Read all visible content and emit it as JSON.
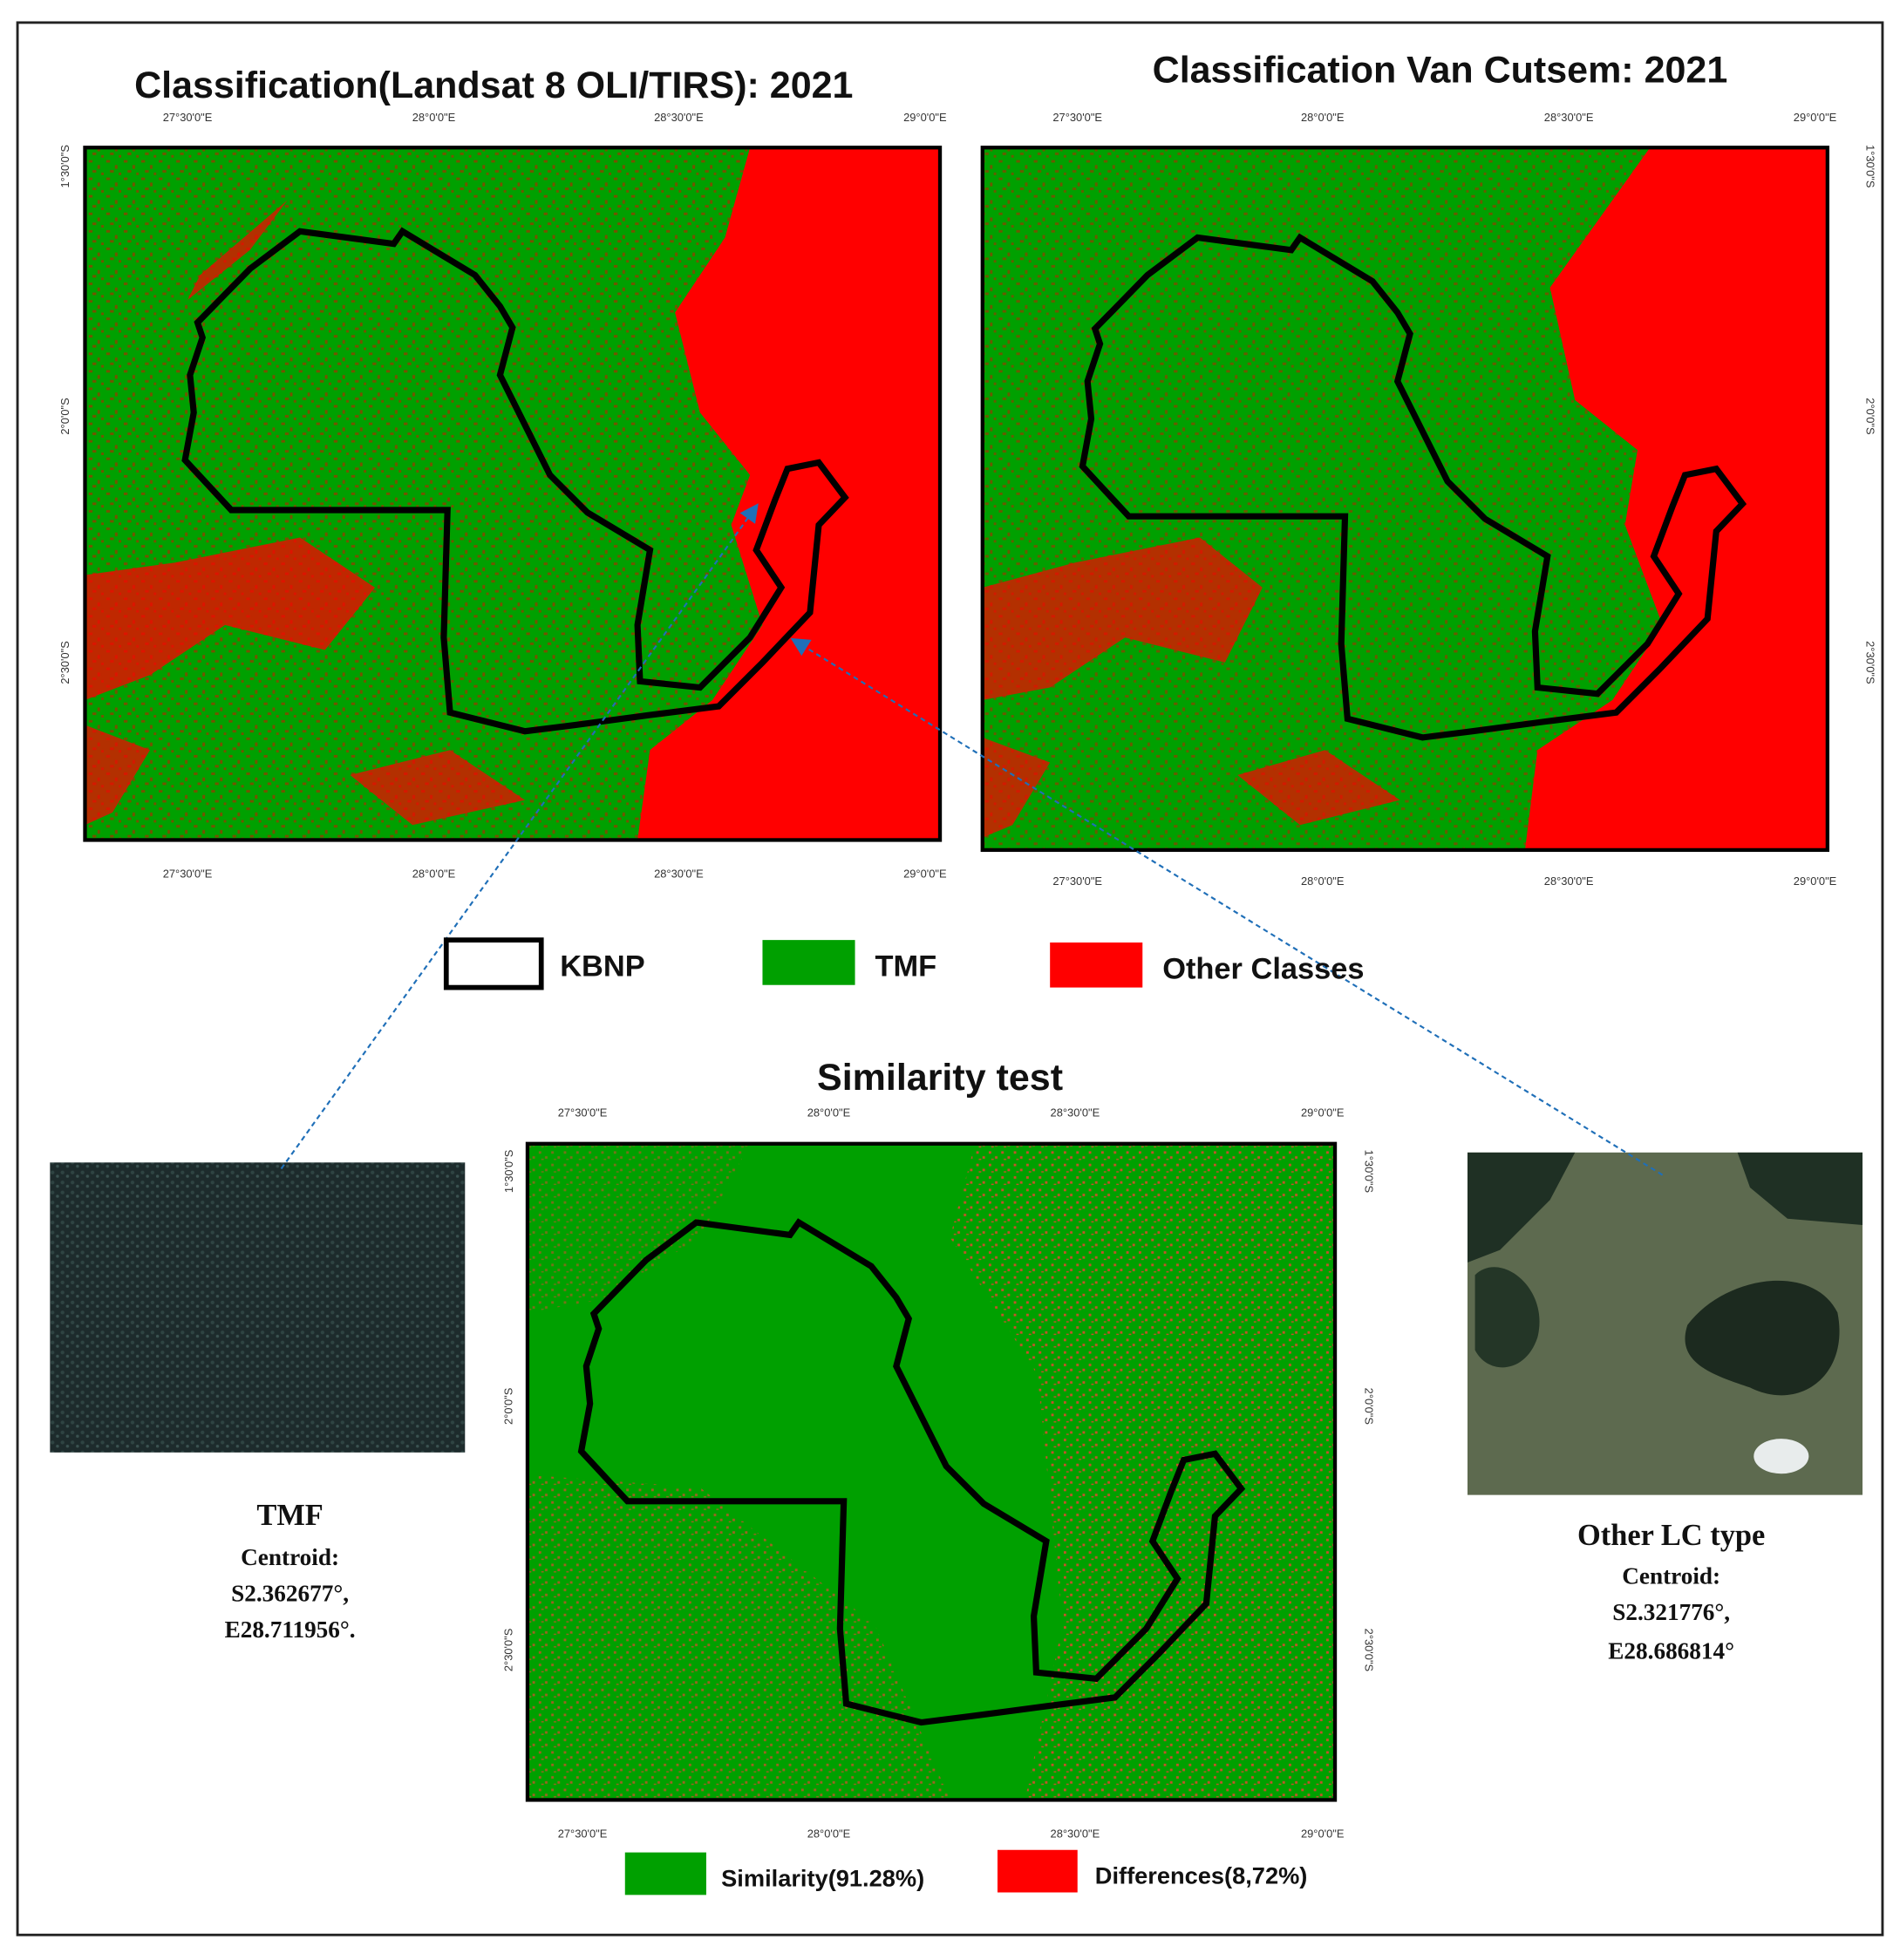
{
  "panels": [
    {
      "title": "Classification(Landsat 8 OLI/TIRS): 2021",
      "x_labels": [
        "27°30'0\"E",
        "28°0'0\"E",
        "28°30'0\"E",
        "29°0'0\"E"
      ],
      "y_labels": [
        "1°30'0\"S",
        "2°0'0\"S",
        "2°30'0\"S"
      ]
    },
    {
      "title": "Classification Van Cutsem: 2021",
      "x_labels": [
        "27°30'0\"E",
        "28°0'0\"E",
        "28°30'0\"E",
        "29°0'0\"E"
      ],
      "y_labels": [
        "1°30'0\"S",
        "2°0'0\"S",
        "2°30'0\"S"
      ]
    },
    {
      "title": "Similarity test",
      "x_labels": [
        "27°30'0\"E",
        "28°0'0\"E",
        "28°30'0\"E",
        "29°0'0\"E"
      ],
      "y_labels": [
        "1°30'0\"S",
        "2°0'0\"S",
        "2°30'0\"S"
      ]
    }
  ],
  "legend_top": [
    "KBNP",
    "TMF",
    "Other Classes"
  ],
  "legend_bottom": [
    "Similarity(91.28%)",
    "Differences(8,72%)"
  ],
  "photos": [
    {
      "title": "TMF",
      "lines": [
        "Centroid:",
        "S2.362677°,",
        "E28.711956°."
      ]
    },
    {
      "title": "Other LC type",
      "lines": [
        "Centroid:",
        "S2.321776°,",
        "E28.686814°"
      ]
    }
  ]
}
